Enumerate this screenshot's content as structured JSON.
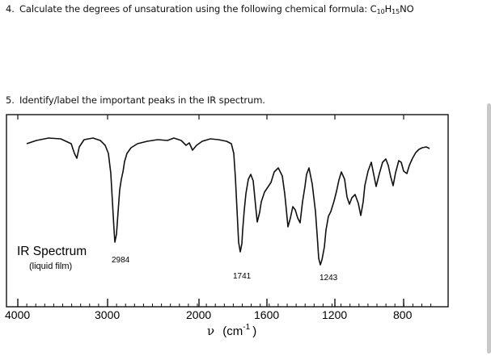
{
  "questions": [
    {
      "number": "4.",
      "text": "Calculate the degrees of unsaturation using the following chemical formula: ",
      "formula": {
        "c": "C",
        "c_n": "10",
        "h": "H",
        "h_n": "15",
        "rest": "NO"
      }
    },
    {
      "number": "5.",
      "text": "Identify/label the important peaks in the IR spectrum."
    }
  ],
  "spectrum": {
    "title": "IR Spectrum",
    "subtitle": "(liquid film)",
    "peak_labels": [
      "2984",
      "1741",
      "1243"
    ],
    "axis_ticks": [
      "4000",
      "3000",
      "2000",
      "1600",
      "1200",
      "800"
    ],
    "axis_label_nu": "ν",
    "axis_label_unit_open": "(cm",
    "axis_label_exp": "-1",
    "axis_label_unit_close": ")"
  },
  "chart_data": {
    "type": "line",
    "title": "IR Spectrum",
    "subtitle": "(liquid film)",
    "xlabel": "ν (cm-1)",
    "x_ticks": [
      4000,
      3000,
      2000,
      1600,
      1200,
      800
    ],
    "x_scale": "piecewise (4000–2000 compressed, 2000–600 expanded)",
    "xlim": [
      4000,
      600
    ],
    "annotated_peaks": [
      {
        "wavenumber": 2984,
        "label": "2984"
      },
      {
        "wavenumber": 1741,
        "label": "1741"
      },
      {
        "wavenumber": 1243,
        "label": "1243"
      }
    ]
  }
}
